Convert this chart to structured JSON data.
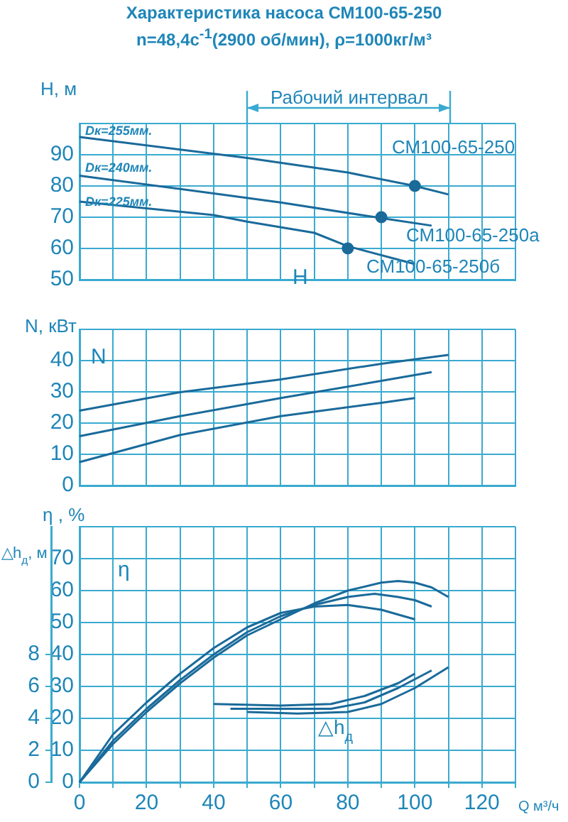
{
  "chart_data": [
    {
      "type": "line",
      "title": "Характеристика насоса СМ100-65-250",
      "subtitle": "n=48,4с$^{-1}$(2900 об/мин), ρ=1000кг/м³",
      "ylabel": "H, м",
      "xlim": [
        0,
        130
      ],
      "xticks": [
        0,
        10,
        20,
        30,
        40,
        50,
        60,
        70,
        80,
        90,
        100,
        110,
        120,
        130
      ],
      "ylim": [
        50,
        100
      ],
      "yticks": [
        50,
        60,
        70,
        80,
        90,
        {
          "value": 100,
          "label": null
        }
      ],
      "grid": true,
      "legend": false,
      "tick_labels": "y",
      "annotations": [
        "Рабочий интервал",
        "Dк=255мм.",
        "Dк=240мм.",
        "Dк=225мм.",
        "СМ100-65-250",
        "СМ100-65-250а",
        "СМ100-65-250б",
        "H"
      ],
      "series": [
        {
          "color": "#1a6a9a",
          "x": [
            0,
            50,
            80,
            100,
            110
          ],
          "values": [
            95.7,
            89,
            84.3,
            80,
            77.3
          ]
        },
        {
          "color": "#1a6a9a",
          "x": [
            0,
            40,
            60,
            90,
            105
          ],
          "values": [
            83.3,
            77.6,
            74.7,
            69.7,
            67.3
          ]
        },
        {
          "color": "#1a6a9a",
          "x": [
            0,
            40,
            50,
            70,
            80,
            100
          ],
          "values": [
            75,
            70.7,
            68.6,
            65,
            60.7,
            55
          ]
        },
        {
          "type": "scatter",
          "marker": "circle",
          "color": "#1a6a9a",
          "x": [
            100,
            90,
            80
          ],
          "values": [
            80,
            70,
            60
          ]
        }
      ]
    },
    {
      "type": "line",
      "ylabel": "N, кВт",
      "xlim": [
        0,
        130
      ],
      "xticks": [
        0,
        10,
        20,
        30,
        40,
        50,
        60,
        70,
        80,
        90,
        100,
        110,
        120,
        130
      ],
      "ylim": [
        0,
        50
      ],
      "yticks": [
        0,
        10,
        20,
        30,
        40,
        {
          "value": 50,
          "label": null
        }
      ],
      "grid": true,
      "legend": false,
      "tick_labels": "y",
      "annotations": [
        "N"
      ],
      "series": [
        {
          "color": "#1a6a9a",
          "x": [
            0,
            30,
            60,
            90,
            110
          ],
          "values": [
            24,
            29.9,
            34,
            39,
            41.8
          ]
        },
        {
          "color": "#1a6a9a",
          "x": [
            0,
            30,
            60,
            90,
            105
          ],
          "values": [
            15.8,
            22.2,
            28,
            33.5,
            36.3
          ]
        },
        {
          "color": "#1a6a9a",
          "x": [
            0,
            30,
            60,
            90,
            100
          ],
          "values": [
            7.5,
            16.2,
            22.2,
            26.5,
            28
          ]
        }
      ]
    },
    {
      "type": "line",
      "ylabel": "η , %",
      "y2label": "△h$_{д}$, м",
      "xlabel": "Q м³/ч",
      "xlim": [
        0,
        130
      ],
      "xticks": [
        0,
        20,
        40,
        60,
        80,
        100,
        120,
        {
          "value": 10,
          "label": null
        },
        {
          "value": 30,
          "label": null
        },
        {
          "value": 50,
          "label": null
        },
        {
          "value": 70,
          "label": null
        },
        {
          "value": 90,
          "label": null
        },
        {
          "value": 110,
          "label": null
        },
        {
          "value": 130,
          "label": null
        }
      ],
      "ylim": [
        0,
        80
      ],
      "yticks": [
        0,
        10,
        20,
        30,
        40,
        50,
        60,
        70,
        {
          "value": 80,
          "label": null
        }
      ],
      "y2lim": [
        0,
        16
      ],
      "y2ticks": [
        0,
        2,
        4,
        6,
        8
      ],
      "grid": true,
      "legend": false,
      "annotations": [
        "η",
        "△h$_{д}$"
      ],
      "series": [
        {
          "color": "#1a6a9a",
          "x": [
            0,
            10,
            20,
            30,
            40,
            50,
            60,
            70,
            80,
            90,
            95,
            100,
            105,
            110
          ],
          "values": [
            0,
            12,
            22,
            31,
            39,
            46,
            51,
            56,
            60,
            62.5,
            63,
            62.5,
            61,
            58
          ]
        },
        {
          "color": "#1a6a9a",
          "x": [
            0,
            10,
            20,
            30,
            40,
            50,
            60,
            70,
            80,
            88,
            95,
            100,
            105
          ],
          "values": [
            0,
            13,
            23,
            32,
            40,
            47,
            52,
            55.5,
            58,
            59,
            58,
            57,
            55
          ]
        },
        {
          "color": "#1a6a9a",
          "x": [
            0,
            10,
            20,
            30,
            40,
            50,
            60,
            70,
            80,
            90,
            100
          ],
          "values": [
            0,
            15,
            25,
            34,
            42,
            48.5,
            53,
            55,
            55.5,
            54,
            51
          ]
        },
        {
          "axis": "y2",
          "color": "#1a6a9a",
          "x": [
            40,
            60,
            75,
            85,
            95,
            100
          ],
          "values": [
            4.9,
            4.8,
            4.9,
            5.4,
            6.2,
            6.8
          ]
        },
        {
          "axis": "y2",
          "color": "#1a6a9a",
          "x": [
            45,
            60,
            75,
            85,
            95,
            105
          ],
          "values": [
            4.6,
            4.6,
            4.6,
            5,
            5.9,
            7
          ]
        },
        {
          "axis": "y2",
          "color": "#1a6a9a",
          "x": [
            50,
            65,
            80,
            90,
            100,
            110
          ],
          "values": [
            4.4,
            4.3,
            4.4,
            4.9,
            5.9,
            7.2
          ]
        }
      ]
    }
  ]
}
